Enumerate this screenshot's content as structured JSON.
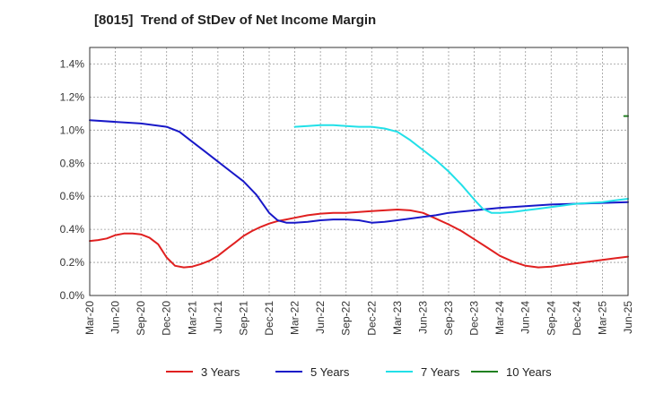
{
  "title": "[8015]  Trend of StDev of Net Income Margin",
  "chart_data": {
    "type": "line",
    "title": "[8015]  Trend of StDev of Net Income Margin",
    "xlabel": "",
    "ylabel": "",
    "ylim": [
      0,
      1.5
    ],
    "grid": true,
    "legend_position": "bottom",
    "y_ticks": [
      "0.0%",
      "0.2%",
      "0.4%",
      "0.6%",
      "0.8%",
      "1.0%",
      "1.2%",
      "1.4%"
    ],
    "x_ticks": [
      "Mar-20",
      "Jun-20",
      "Sep-20",
      "Dec-20",
      "Mar-21",
      "Jun-21",
      "Sep-21",
      "Dec-21",
      "Mar-22",
      "Jun-22",
      "Sep-22",
      "Dec-22",
      "Mar-23",
      "Jun-23",
      "Sep-23",
      "Dec-23",
      "Mar-24",
      "Jun-24",
      "Sep-24",
      "Dec-24",
      "Mar-25",
      "Jun-25"
    ],
    "series": [
      {
        "name": "3 Years",
        "color": "#e02020",
        "points": [
          [
            0,
            0.33
          ],
          [
            0.33,
            0.335
          ],
          [
            0.67,
            0.345
          ],
          [
            1,
            0.365
          ],
          [
            1.33,
            0.375
          ],
          [
            1.67,
            0.375
          ],
          [
            2,
            0.37
          ],
          [
            2.33,
            0.35
          ],
          [
            2.67,
            0.31
          ],
          [
            3,
            0.23
          ],
          [
            3.33,
            0.18
          ],
          [
            3.67,
            0.17
          ],
          [
            4,
            0.175
          ],
          [
            4.33,
            0.19
          ],
          [
            4.67,
            0.21
          ],
          [
            5,
            0.24
          ],
          [
            5.33,
            0.28
          ],
          [
            5.67,
            0.32
          ],
          [
            6,
            0.36
          ],
          [
            6.33,
            0.39
          ],
          [
            6.67,
            0.415
          ],
          [
            7,
            0.435
          ],
          [
            7.33,
            0.45
          ],
          [
            7.67,
            0.46
          ],
          [
            8,
            0.47
          ],
          [
            8.5,
            0.485
          ],
          [
            9,
            0.495
          ],
          [
            9.5,
            0.5
          ],
          [
            10,
            0.5
          ],
          [
            10.5,
            0.505
          ],
          [
            11,
            0.51
          ],
          [
            11.5,
            0.515
          ],
          [
            12,
            0.52
          ],
          [
            12.5,
            0.515
          ],
          [
            13,
            0.5
          ],
          [
            13.5,
            0.465
          ],
          [
            14,
            0.43
          ],
          [
            14.5,
            0.39
          ],
          [
            15,
            0.34
          ],
          [
            15.5,
            0.29
          ],
          [
            16,
            0.24
          ],
          [
            16.5,
            0.205
          ],
          [
            17,
            0.18
          ],
          [
            17.5,
            0.17
          ],
          [
            18,
            0.175
          ],
          [
            18.5,
            0.185
          ],
          [
            19,
            0.195
          ],
          [
            19.5,
            0.205
          ],
          [
            20,
            0.215
          ],
          [
            20.5,
            0.225
          ],
          [
            21,
            0.235
          ]
        ]
      },
      {
        "name": "5 Years",
        "color": "#1818c8",
        "points": [
          [
            0,
            1.06
          ],
          [
            1,
            1.05
          ],
          [
            2,
            1.04
          ],
          [
            3,
            1.02
          ],
          [
            3.5,
            0.99
          ],
          [
            4,
            0.93
          ],
          [
            4.5,
            0.87
          ],
          [
            5,
            0.81
          ],
          [
            5.5,
            0.75
          ],
          [
            6,
            0.69
          ],
          [
            6.5,
            0.61
          ],
          [
            7,
            0.5
          ],
          [
            7.33,
            0.455
          ],
          [
            7.67,
            0.44
          ],
          [
            8,
            0.44
          ],
          [
            8.5,
            0.445
          ],
          [
            9,
            0.455
          ],
          [
            9.5,
            0.46
          ],
          [
            10,
            0.46
          ],
          [
            10.5,
            0.455
          ],
          [
            11,
            0.44
          ],
          [
            11.5,
            0.445
          ],
          [
            12,
            0.455
          ],
          [
            12.5,
            0.465
          ],
          [
            13,
            0.475
          ],
          [
            13.5,
            0.485
          ],
          [
            14,
            0.5
          ],
          [
            15,
            0.515
          ],
          [
            16,
            0.53
          ],
          [
            17,
            0.54
          ],
          [
            18,
            0.55
          ],
          [
            19,
            0.555
          ],
          [
            20,
            0.56
          ],
          [
            21,
            0.565
          ]
        ]
      },
      {
        "name": "7 Years",
        "color": "#22e0e8",
        "points": [
          [
            8,
            1.02
          ],
          [
            8.5,
            1.025
          ],
          [
            9,
            1.03
          ],
          [
            9.5,
            1.03
          ],
          [
            10,
            1.025
          ],
          [
            10.5,
            1.02
          ],
          [
            11,
            1.02
          ],
          [
            11.5,
            1.01
          ],
          [
            12,
            0.99
          ],
          [
            12.5,
            0.94
          ],
          [
            13,
            0.88
          ],
          [
            13.5,
            0.82
          ],
          [
            14,
            0.75
          ],
          [
            14.5,
            0.67
          ],
          [
            15,
            0.58
          ],
          [
            15.33,
            0.525
          ],
          [
            15.67,
            0.5
          ],
          [
            16,
            0.5
          ],
          [
            16.5,
            0.505
          ],
          [
            17,
            0.515
          ],
          [
            17.5,
            0.525
          ],
          [
            18,
            0.535
          ],
          [
            18.5,
            0.545
          ],
          [
            19,
            0.555
          ],
          [
            19.5,
            0.56
          ],
          [
            20,
            0.565
          ],
          [
            20.5,
            0.575
          ],
          [
            21,
            0.585
          ]
        ]
      },
      {
        "name": "10 Years",
        "color": "#208020",
        "points": [
          [
            20.85,
            1.085
          ],
          [
            21,
            1.085
          ]
        ]
      }
    ]
  }
}
